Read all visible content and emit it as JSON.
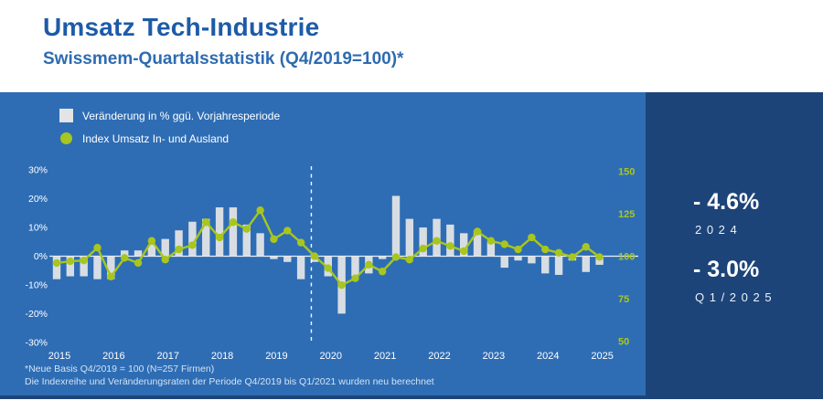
{
  "header": {
    "title": "Umsatz Tech-Industrie",
    "subtitle": "Swissmem-Quartalsstatistik (Q4/2019=100)*"
  },
  "legend": {
    "bar_label": "Veränderung in % ggü. Vorjahresperiode",
    "line_label": "Index Umsatz In- und Ausland"
  },
  "side_panel": {
    "stat1_value": "- 4.6%",
    "stat1_period": "2 0 2 4",
    "stat2_value": "- 3.0%",
    "stat2_period": "Q 1 / 2 0 2 5"
  },
  "footnotes": {
    "line1": "*Neue Basis Q4/2019 = 100 (N=257 Firmen)",
    "line2": "Die Indexreihe und Veränderungsraten der Periode Q4/2019 bis Q1/2021 wurden neu berechnet"
  },
  "colors": {
    "band_blue": "#2e6db4",
    "panel_navy": "#1d4478",
    "title_blue": "#1d5ba8",
    "accent_green": "#a8c61d",
    "bar_gray": "#e2e4e6",
    "axis_white": "#ffffff",
    "footnote_text": "#d3e3f4"
  },
  "chart_data": {
    "type": "bar+line",
    "title": "Umsatz Tech-Industrie, Swissmem-Quartalsstatistik (Q4/2019=100)",
    "x_years": [
      "2015",
      "2016",
      "2017",
      "2018",
      "2019",
      "2020",
      "2021",
      "2022",
      "2023",
      "2024",
      "2025"
    ],
    "quarters": [
      "2015-Q1",
      "2015-Q2",
      "2015-Q3",
      "2015-Q4",
      "2016-Q1",
      "2016-Q2",
      "2016-Q3",
      "2016-Q4",
      "2017-Q1",
      "2017-Q2",
      "2017-Q3",
      "2017-Q4",
      "2018-Q1",
      "2018-Q2",
      "2018-Q3",
      "2018-Q4",
      "2019-Q1",
      "2019-Q2",
      "2019-Q3",
      "2019-Q4",
      "2020-Q1",
      "2020-Q2",
      "2020-Q3",
      "2020-Q4",
      "2021-Q1",
      "2021-Q2",
      "2021-Q3",
      "2021-Q4",
      "2022-Q1",
      "2022-Q2",
      "2022-Q3",
      "2022-Q4",
      "2023-Q1",
      "2023-Q2",
      "2023-Q3",
      "2023-Q4",
      "2024-Q1",
      "2024-Q2",
      "2024-Q3",
      "2024-Q4",
      "2025-Q1"
    ],
    "series": [
      {
        "name": "Veränderung in % ggü. Vorjahresperiode",
        "type": "bar",
        "axis": "left",
        "unit": "%",
        "values": [
          -8,
          -7,
          -7,
          -8,
          -8,
          2,
          2,
          4,
          6,
          9,
          12,
          13,
          17,
          17,
          11,
          8,
          -1,
          -2,
          -8,
          -2,
          -7,
          -20,
          -7,
          -6,
          -1,
          21,
          13,
          10,
          13,
          11,
          8,
          9,
          5,
          -4,
          -1.5,
          -2.5,
          -6,
          -6.5,
          -1.5,
          -5.5,
          -3
        ]
      },
      {
        "name": "Index Umsatz In- und Ausland",
        "type": "line",
        "axis": "right",
        "values": [
          96,
          97,
          97.5,
          105,
          88,
          99,
          96,
          109,
          98,
          104,
          106.5,
          120,
          111,
          120,
          116,
          127,
          110,
          115,
          108,
          100,
          93,
          83,
          87,
          95,
          91,
          99.5,
          98,
          104.5,
          109,
          106,
          103,
          114.5,
          109,
          107,
          104,
          111,
          104,
          102,
          99.5,
          105.5,
          99.5
        ]
      }
    ],
    "left_axis": {
      "ticks": [
        30,
        20,
        10,
        0,
        -10,
        -20,
        -30
      ],
      "suffix": "%",
      "range": [
        -30,
        30
      ]
    },
    "right_axis": {
      "ticks": [
        150,
        125,
        100,
        75,
        50
      ],
      "range": [
        50,
        150
      ]
    },
    "annotations": {
      "dashed_line_at": "2019-Q4",
      "dashed_line_note": "Neue Basis Q4/2019 = 100"
    },
    "grid": "zero-line-only",
    "legend_position": "top-left"
  }
}
